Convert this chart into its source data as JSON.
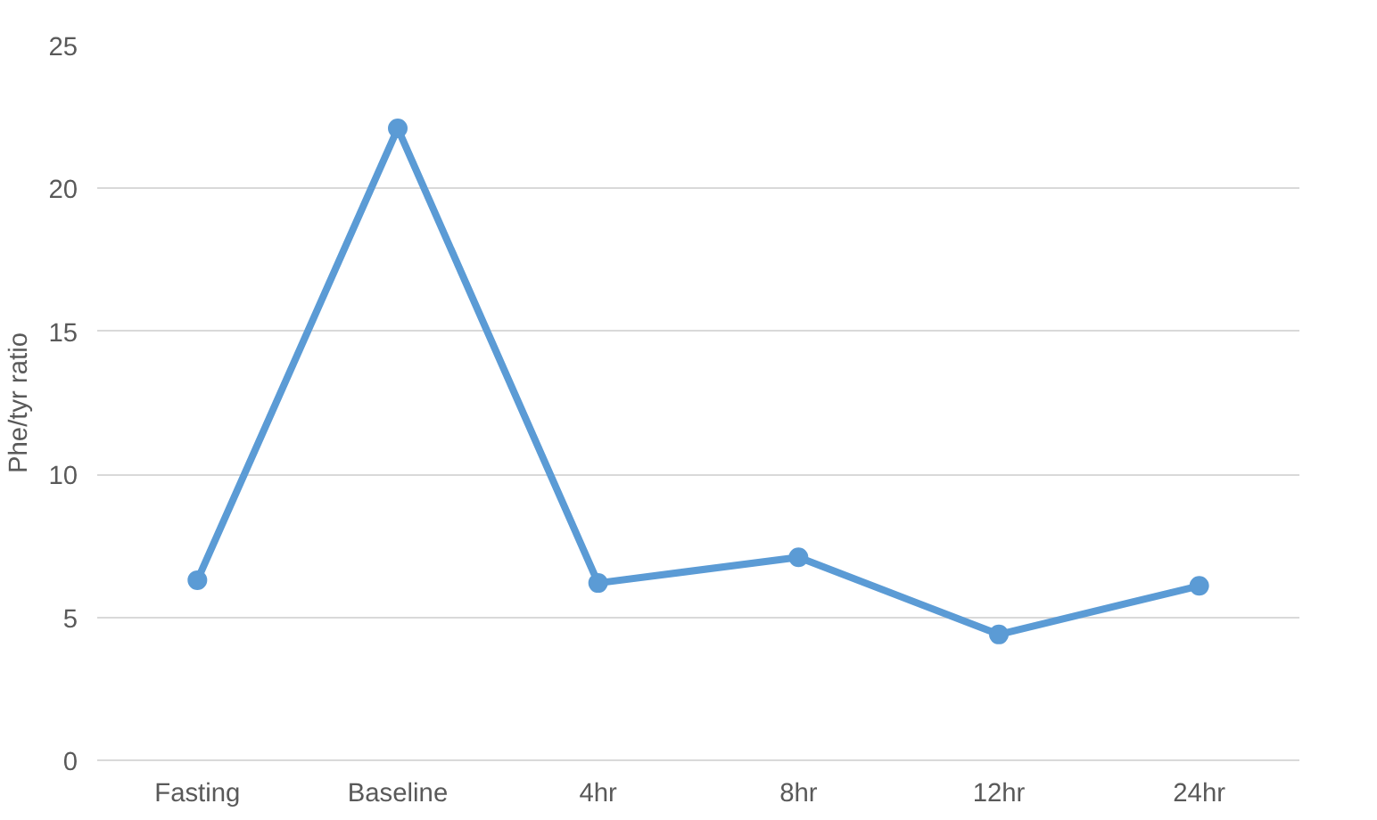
{
  "chart_data": {
    "type": "line",
    "ylabel": "Phe/tyr ratio",
    "categories": [
      "Fasting",
      "Baseline",
      "4hr",
      "8hr",
      "12hr",
      "24hr"
    ],
    "series": [
      {
        "color": "#5b9bd5",
        "values": [
          6.3,
          22.1,
          6.2,
          7.1,
          4.4,
          6.1
        ]
      }
    ],
    "ylim": [
      0,
      25
    ],
    "yticks": [
      0,
      5,
      10,
      15,
      20,
      25
    ],
    "grid": "y",
    "marker": "circle",
    "line_style": "solid"
  }
}
